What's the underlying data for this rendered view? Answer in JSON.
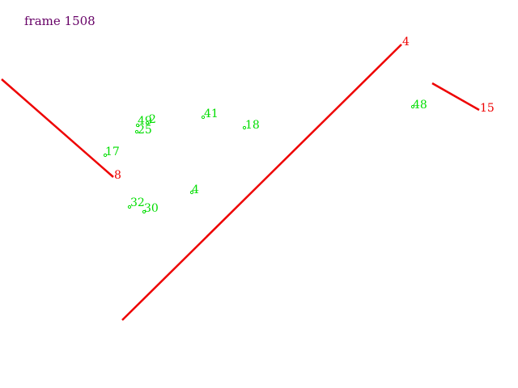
{
  "frame": {
    "label": "frame 1508",
    "color": "#660066"
  },
  "colors": {
    "segment": "#ee0000",
    "point": "#00dd00"
  },
  "segments": [
    {
      "id": "seg-8",
      "label": "8"
    },
    {
      "id": "seg-4",
      "label": "4"
    },
    {
      "id": "seg-15",
      "label": "15"
    }
  ],
  "points": [
    {
      "id": "pt-49",
      "label": "49"
    },
    {
      "id": "pt-2",
      "label": "2"
    },
    {
      "id": "pt-25",
      "label": "25"
    },
    {
      "id": "pt-41",
      "label": "41"
    },
    {
      "id": "pt-18",
      "label": "18"
    },
    {
      "id": "pt-17",
      "label": "17"
    },
    {
      "id": "pt-4",
      "label": "4"
    },
    {
      "id": "pt-32",
      "label": "32"
    },
    {
      "id": "pt-30",
      "label": "30"
    },
    {
      "id": "pt-48",
      "label": "48"
    }
  ]
}
